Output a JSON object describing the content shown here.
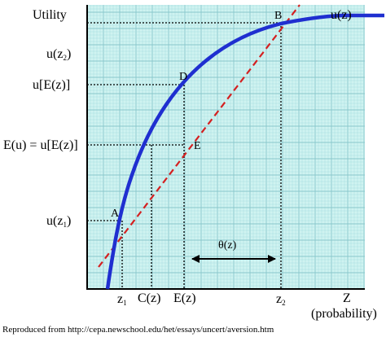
{
  "colors": {
    "background": "#ffffff",
    "plot_bg": "#cff3f1",
    "grid_minor": "#a9dde0",
    "grid_major": "#88c7cc",
    "curve": "#1f2fd0",
    "diagonal": "#d42020",
    "text": "#000000"
  },
  "y_axis": {
    "title": "Utility",
    "labels": {
      "u_z2_main": "u(z",
      "u_z2_sub": "2",
      "u_z2_tail": ")",
      "u_ez": "u[E(z)]",
      "eu": "E(u) = u[E(z)]",
      "u_z1_main": "u(z",
      "u_z1_sub": "1",
      "u_z1_tail": ")"
    }
  },
  "x_axis": {
    "title": "Z",
    "subtitle": "(probability)",
    "labels": {
      "z1_main": "z",
      "z1_sub": "1",
      "cz": "C(z)",
      "ez": "E(z)",
      "z2_main": "z",
      "z2_sub": "2"
    }
  },
  "curve": {
    "label": "u(z)"
  },
  "points": {
    "A": "A",
    "B": "B",
    "D": "D",
    "E": "E"
  },
  "theta": {
    "label": "θ(z)"
  },
  "credit": "Reproduced from http://cepa.newschool.edu/het/essays/uncert/aversion.htm"
}
